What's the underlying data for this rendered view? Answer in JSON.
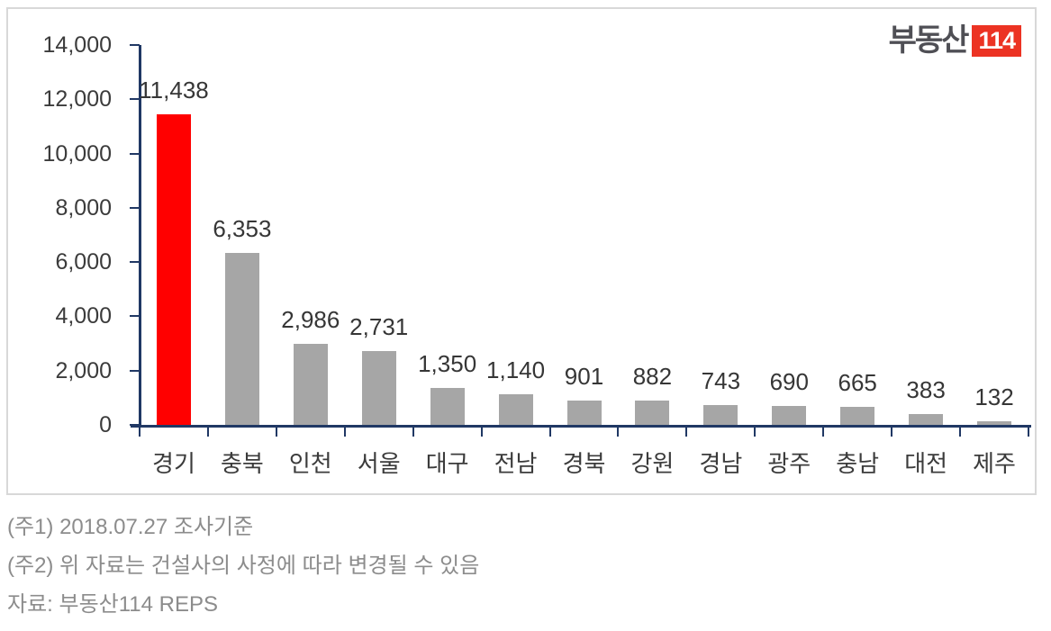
{
  "logo": {
    "brand": "부동산",
    "badge": "114"
  },
  "chart_data": {
    "type": "bar",
    "title": "",
    "xlabel": "",
    "ylabel": "",
    "categories": [
      "경기",
      "충북",
      "인천",
      "서울",
      "대구",
      "전남",
      "경북",
      "강원",
      "경남",
      "광주",
      "충남",
      "대전",
      "제주"
    ],
    "values": [
      11438,
      6353,
      2986,
      2731,
      1350,
      1140,
      901,
      882,
      743,
      690,
      665,
      383,
      132
    ],
    "value_labels": [
      "11,438",
      "6,353",
      "2,986",
      "2,731",
      "1,350",
      "1,140",
      "901",
      "882",
      "743",
      "690",
      "665",
      "383",
      "132"
    ],
    "ylim": [
      0,
      14000
    ],
    "y_tick_step": 2000,
    "y_tick_labels": [
      "0",
      "2,000",
      "4,000",
      "6,000",
      "8,000",
      "10,000",
      "12,000",
      "14,000"
    ],
    "grid": false,
    "legend": false,
    "highlight_index": 0,
    "colors": {
      "highlight_bar": "#FF0000",
      "bar": "#A6A6A6",
      "axis": "#203864",
      "label": "#3B3B3B"
    }
  },
  "footer": {
    "note1": "(주1) 2018.07.27 조사기준",
    "note2": "(주2) 위 자료는 건설사의 사정에 따라 변경될 수 있음",
    "source": "자료: 부동산114 REPS"
  }
}
